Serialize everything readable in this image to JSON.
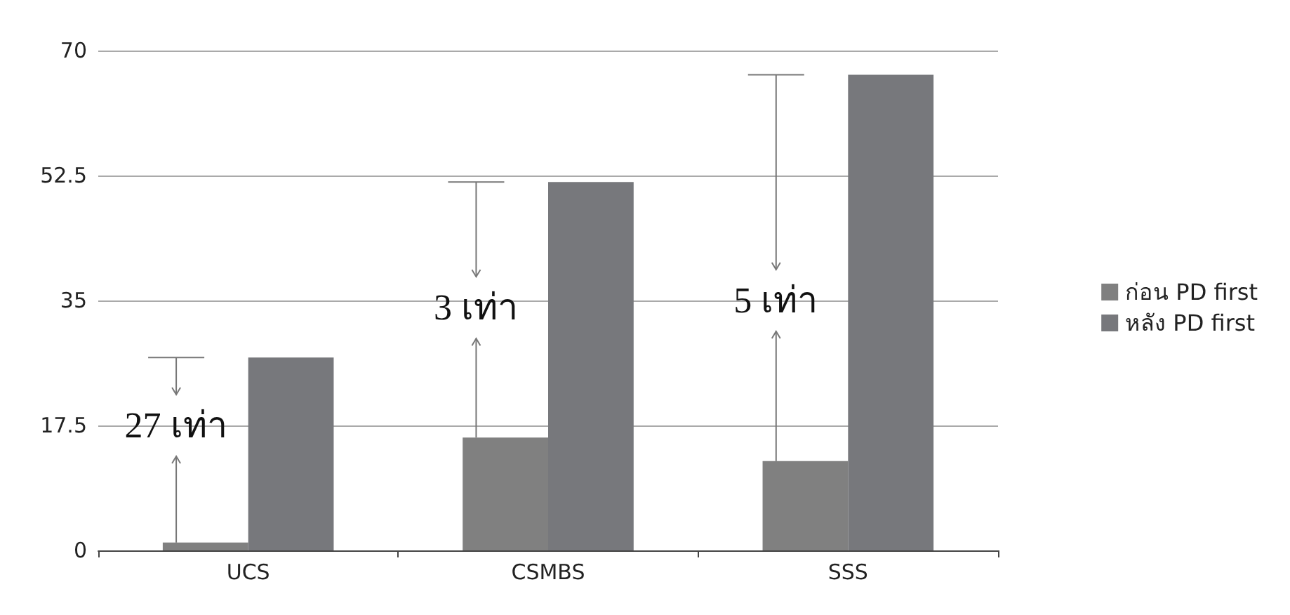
{
  "chart_data": {
    "type": "bar",
    "categories": [
      "UCS",
      "CSMBS",
      "SSS"
    ],
    "series": [
      {
        "name": "ก่อน PD first",
        "color": "#808080",
        "values": [
          1.1,
          15.8,
          12.5
        ]
      },
      {
        "name": "หลัง PD first",
        "color": "#77787c",
        "values": [
          27,
          51.6,
          66.6
        ]
      }
    ],
    "ylim": [
      0,
      70
    ],
    "yticks": [
      0,
      17.5,
      35,
      52.5,
      70
    ],
    "grid": "y",
    "legend": "right",
    "annotations": [
      {
        "text": "27 เท่า",
        "x": "UCS",
        "y": 17.5
      },
      {
        "text": "3 เท่า",
        "x": "CSMBS",
        "y": 34
      },
      {
        "text": "5 เท่า",
        "x": "SSS",
        "y": 35
      }
    ]
  }
}
